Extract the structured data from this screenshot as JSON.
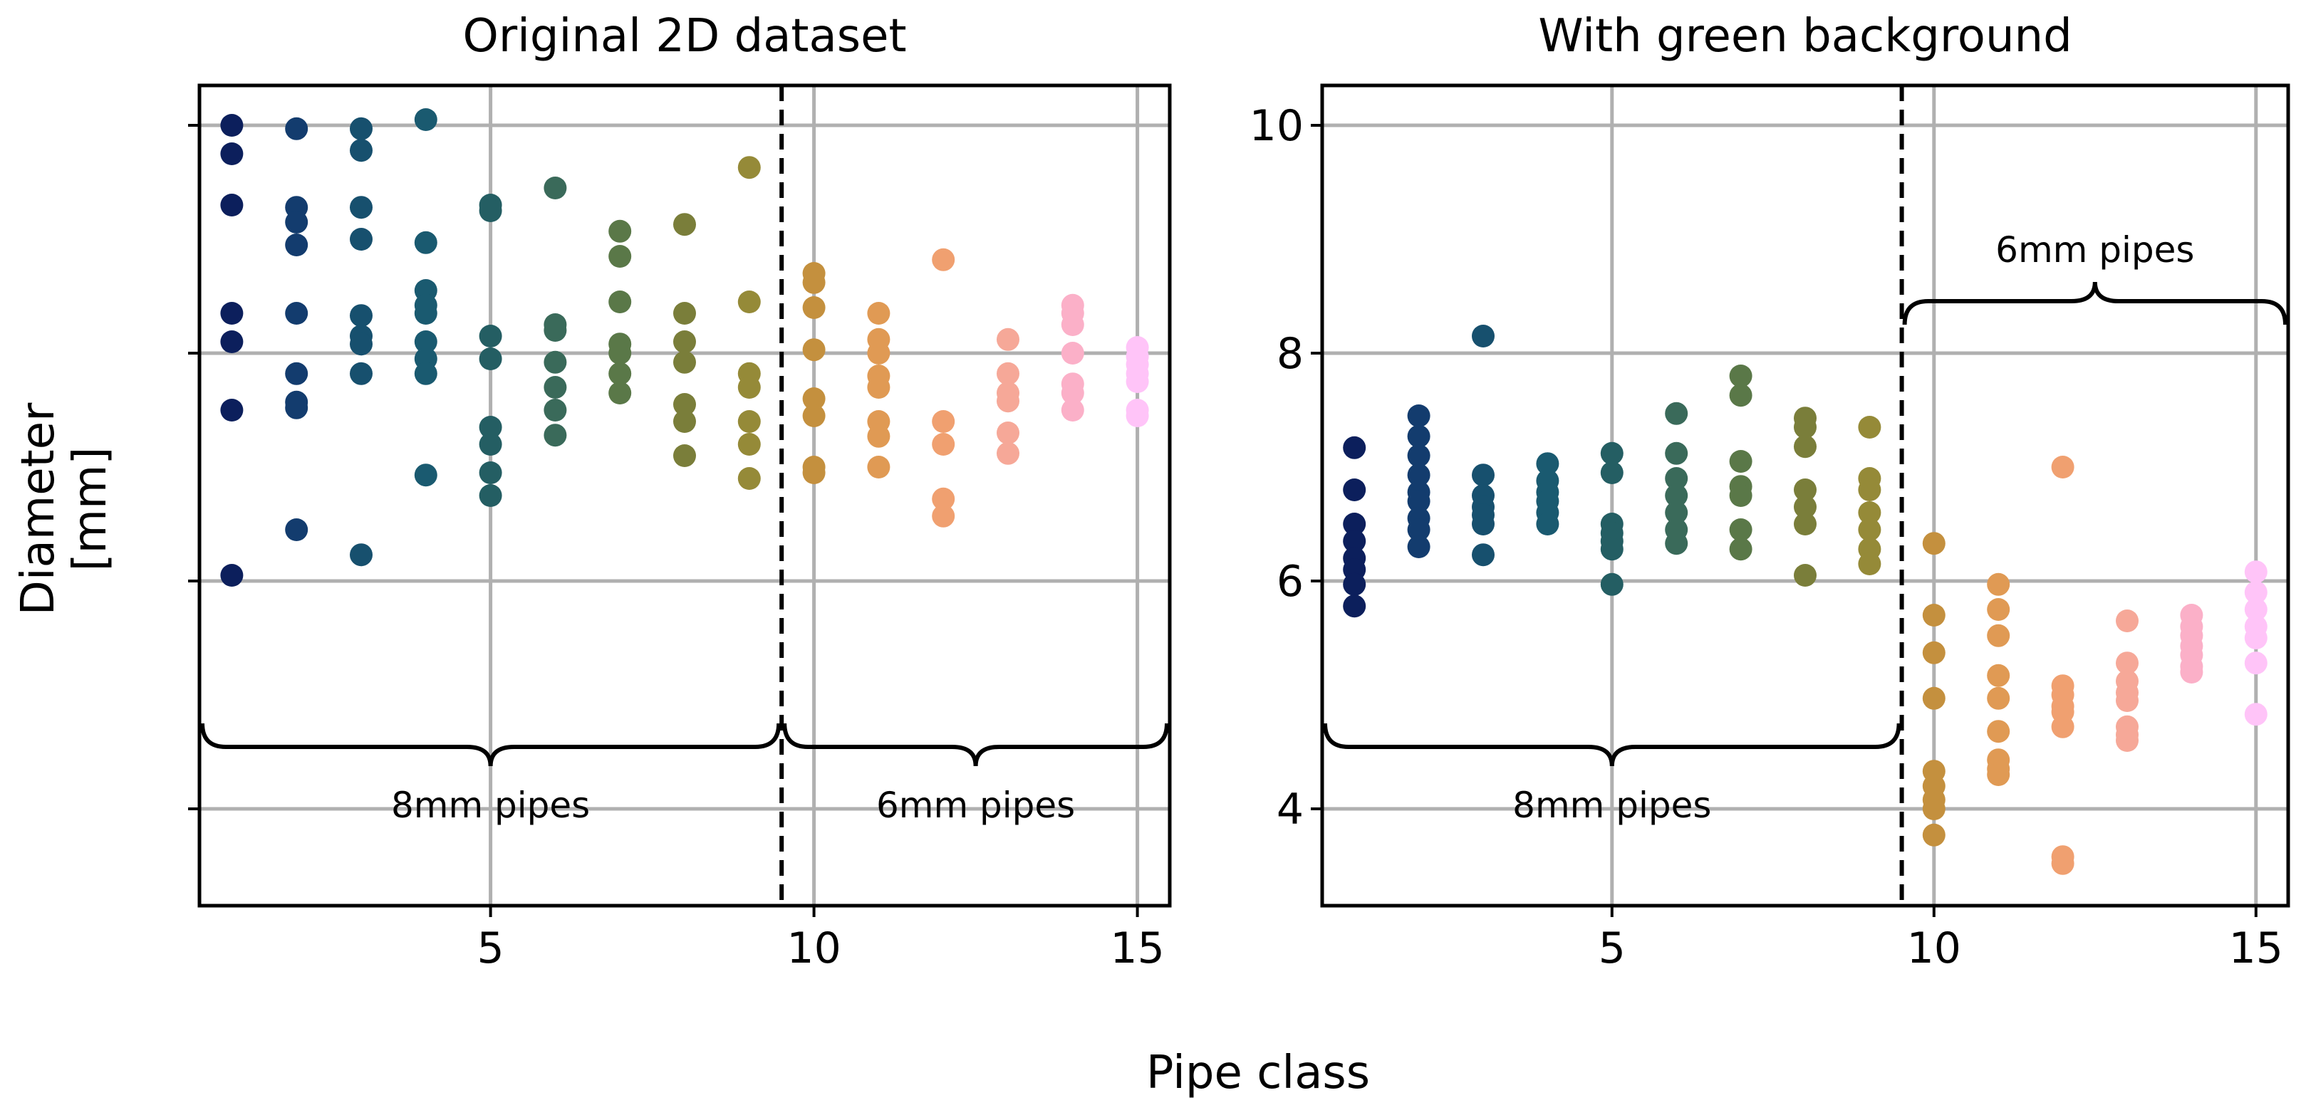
{
  "figure": {
    "xlabel": "Pipe class",
    "ylabel_lines": [
      "Diameter",
      "[mm]"
    ]
  },
  "chart_data": [
    {
      "type": "scatter",
      "title": "Original 2D dataset",
      "xlabel": "Pipe class",
      "ylabel": "Diameter [mm]",
      "xlim": [
        0.5,
        15.5
      ],
      "ylim": [
        3.15,
        10.35
      ],
      "xticks": [
        5,
        10,
        15
      ],
      "xtick_labels": [
        "5",
        "10",
        "15"
      ],
      "yticks": [
        4,
        6,
        8,
        10
      ],
      "ytick_labels": [
        "",
        "",
        "",
        ""
      ],
      "grid": true,
      "divider_x": 9.5,
      "annotations": [
        {
          "text": "8mm pipes",
          "x_from": 0.5,
          "x_to": 9.5,
          "y": 4.75,
          "direction": "down"
        },
        {
          "text": "6mm pipes",
          "x_from": 9.5,
          "x_to": 15.5,
          "y": 4.75,
          "direction": "down"
        }
      ],
      "series": [
        {
          "class": 1,
          "color": "#0c1f5c",
          "y": [
            10.0,
            9.75,
            9.3,
            8.35,
            8.1,
            7.5,
            6.05
          ]
        },
        {
          "class": 2,
          "color": "#133c6e",
          "y": [
            9.97,
            9.28,
            9.15,
            8.95,
            8.35,
            7.82,
            7.57,
            7.52,
            6.45
          ]
        },
        {
          "class": 3,
          "color": "#17506e",
          "y": [
            9.97,
            9.78,
            9.28,
            9.0,
            8.33,
            8.15,
            8.08,
            7.82,
            6.23
          ]
        },
        {
          "class": 4,
          "color": "#1a5a70",
          "y": [
            10.05,
            8.97,
            8.55,
            8.42,
            8.35,
            8.1,
            7.95,
            7.82,
            6.93
          ]
        },
        {
          "class": 5,
          "color": "#245e63",
          "y": [
            9.3,
            9.25,
            8.15,
            7.95,
            7.35,
            7.2,
            6.95,
            6.75
          ]
        },
        {
          "class": 6,
          "color": "#3a6a5a",
          "y": [
            9.45,
            8.25,
            8.2,
            7.92,
            7.7,
            7.5,
            7.28
          ]
        },
        {
          "class": 7,
          "color": "#5a7848",
          "y": [
            9.07,
            8.85,
            8.45,
            8.08,
            8.0,
            7.82,
            7.65
          ]
        },
        {
          "class": 8,
          "color": "#7a7e3a",
          "y": [
            9.13,
            8.35,
            8.1,
            7.92,
            7.55,
            7.4,
            7.1
          ]
        },
        {
          "class": 9,
          "color": "#958a38",
          "y": [
            9.63,
            8.45,
            7.82,
            7.7,
            7.4,
            7.2,
            6.9
          ]
        },
        {
          "class": 10,
          "color": "#c4903e",
          "y": [
            8.7,
            8.62,
            8.4,
            8.03,
            7.6,
            7.45,
            7.0,
            6.95
          ]
        },
        {
          "class": 11,
          "color": "#e09a54",
          "y": [
            8.35,
            8.12,
            8.0,
            7.8,
            7.7,
            7.4,
            7.27,
            7.0
          ]
        },
        {
          "class": 12,
          "color": "#f0a070",
          "y": [
            8.82,
            7.4,
            7.2,
            6.72,
            6.57
          ]
        },
        {
          "class": 13,
          "color": "#f6a898",
          "y": [
            8.12,
            7.82,
            7.65,
            7.58,
            7.3,
            7.12
          ]
        },
        {
          "class": 14,
          "color": "#fbb0c8",
          "y": [
            8.42,
            8.35,
            8.25,
            8.0,
            7.73,
            7.65,
            7.5
          ]
        },
        {
          "class": 15,
          "color": "#ffc4f8",
          "y": [
            8.05,
            7.97,
            7.9,
            7.82,
            7.75,
            7.5,
            7.45
          ]
        }
      ]
    },
    {
      "type": "scatter",
      "title": "With green background",
      "xlabel": "Pipe class",
      "ylabel": "Diameter [mm]",
      "xlim": [
        0.5,
        15.5
      ],
      "ylim": [
        3.15,
        10.35
      ],
      "xticks": [
        5,
        10,
        15
      ],
      "xtick_labels": [
        "5",
        "10",
        "15"
      ],
      "yticks": [
        4,
        6,
        8,
        10
      ],
      "ytick_labels": [
        "4",
        "6",
        "8",
        "10"
      ],
      "grid": true,
      "divider_x": 9.5,
      "annotations": [
        {
          "text": "8mm pipes",
          "x_from": 0.5,
          "x_to": 9.5,
          "y": 4.75,
          "direction": "down"
        },
        {
          "text": "6mm pipes",
          "x_from": 9.5,
          "x_to": 15.5,
          "y": 8.25,
          "direction": "up"
        }
      ],
      "series": [
        {
          "class": 1,
          "color": "#0c1f5c",
          "y": [
            7.17,
            6.8,
            6.5,
            6.35,
            6.2,
            6.1,
            5.97,
            5.78
          ]
        },
        {
          "class": 2,
          "color": "#133c6e",
          "y": [
            7.45,
            7.27,
            7.1,
            6.93,
            6.78,
            6.7,
            6.55,
            6.45,
            6.3
          ]
        },
        {
          "class": 3,
          "color": "#17506e",
          "y": [
            8.15,
            6.93,
            6.75,
            6.65,
            6.58,
            6.5,
            6.23
          ]
        },
        {
          "class": 4,
          "color": "#1a5a70",
          "y": [
            7.03,
            6.88,
            6.78,
            6.7,
            6.6,
            6.5
          ]
        },
        {
          "class": 5,
          "color": "#245e63",
          "y": [
            7.12,
            6.95,
            6.5,
            6.42,
            6.35,
            6.28,
            5.97
          ]
        },
        {
          "class": 6,
          "color": "#3a6a5a",
          "y": [
            7.47,
            7.12,
            6.9,
            6.75,
            6.6,
            6.45,
            6.33
          ]
        },
        {
          "class": 7,
          "color": "#5a7848",
          "y": [
            7.8,
            7.63,
            7.05,
            6.83,
            6.75,
            6.45,
            6.28
          ]
        },
        {
          "class": 8,
          "color": "#7a7e3a",
          "y": [
            7.43,
            7.35,
            7.18,
            6.8,
            6.65,
            6.5,
            6.05
          ]
        },
        {
          "class": 9,
          "color": "#958a38",
          "y": [
            7.35,
            6.9,
            6.8,
            6.6,
            6.45,
            6.28,
            6.15
          ]
        },
        {
          "class": 10,
          "color": "#c4903e",
          "y": [
            6.33,
            5.7,
            5.37,
            4.97,
            4.33,
            4.2,
            4.08,
            4.0,
            3.77
          ]
        },
        {
          "class": 11,
          "color": "#e09a54",
          "y": [
            5.97,
            5.75,
            5.52,
            5.17,
            4.97,
            4.68,
            4.43,
            4.35,
            4.3
          ]
        },
        {
          "class": 12,
          "color": "#f0a070",
          "y": [
            7.0,
            5.08,
            5.0,
            4.9,
            4.85,
            4.72,
            3.58,
            3.52
          ]
        },
        {
          "class": 13,
          "color": "#f6a898",
          "y": [
            5.65,
            5.28,
            5.12,
            5.02,
            4.95,
            4.72,
            4.65,
            4.6
          ]
        },
        {
          "class": 14,
          "color": "#fbb0c8",
          "y": [
            5.7,
            5.6,
            5.52,
            5.43,
            5.35,
            5.25,
            5.2
          ]
        },
        {
          "class": 15,
          "color": "#ffc4f8",
          "y": [
            6.08,
            5.9,
            5.75,
            5.6,
            5.5,
            5.28,
            4.83
          ]
        }
      ]
    }
  ]
}
